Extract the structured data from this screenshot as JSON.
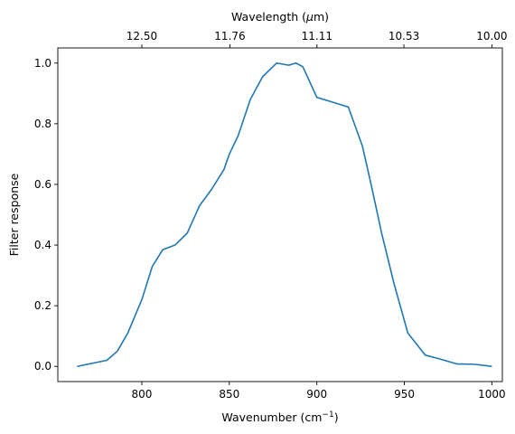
{
  "chart_data": {
    "type": "line",
    "xlabel": "Wavenumber (cm",
    "xlabel_sup": "−1",
    "xlabel_tail": ")",
    "ylabel": "Filter response",
    "top_xlabel": "Wavelength (",
    "top_xlabel_mu": "μ",
    "top_xlabel_tail": "m)",
    "xlim": [
      752,
      1006
    ],
    "ylim": [
      -0.05,
      1.05
    ],
    "x_ticks": [
      800,
      850,
      900,
      950,
      1000
    ],
    "x_tick_labels": [
      "800",
      "850",
      "900",
      "950",
      "1000"
    ],
    "y_ticks": [
      0.0,
      0.2,
      0.4,
      0.6,
      0.8,
      1.0
    ],
    "y_tick_labels": [
      "0.0",
      "0.2",
      "0.4",
      "0.6",
      "0.8",
      "1.0"
    ],
    "top_ticks_wavenumber": [
      800,
      850.34,
      900.09,
      949.76,
      1000
    ],
    "top_tick_labels": [
      "12.50",
      "11.76",
      "11.11",
      "10.53",
      "10.00"
    ],
    "grid": false,
    "line_color": "#1f77b4",
    "series": [
      {
        "x": [
          763,
          780,
          786,
          792,
          800,
          806,
          812,
          819,
          826,
          833,
          840,
          847,
          850,
          855,
          862,
          869,
          877,
          884,
          888,
          892,
          900,
          908,
          918,
          926,
          931,
          937,
          944,
          952,
          962,
          970,
          980,
          990,
          1000
        ],
        "y": [
          0.0,
          0.02,
          0.05,
          0.11,
          0.22,
          0.33,
          0.385,
          0.4,
          0.44,
          0.53,
          0.585,
          0.65,
          0.7,
          0.76,
          0.88,
          0.955,
          1.0,
          0.993,
          1.0,
          0.988,
          0.887,
          0.873,
          0.855,
          0.727,
          0.6,
          0.44,
          0.275,
          0.11,
          0.037,
          0.025,
          0.008,
          0.007,
          0.0
        ]
      }
    ]
  }
}
